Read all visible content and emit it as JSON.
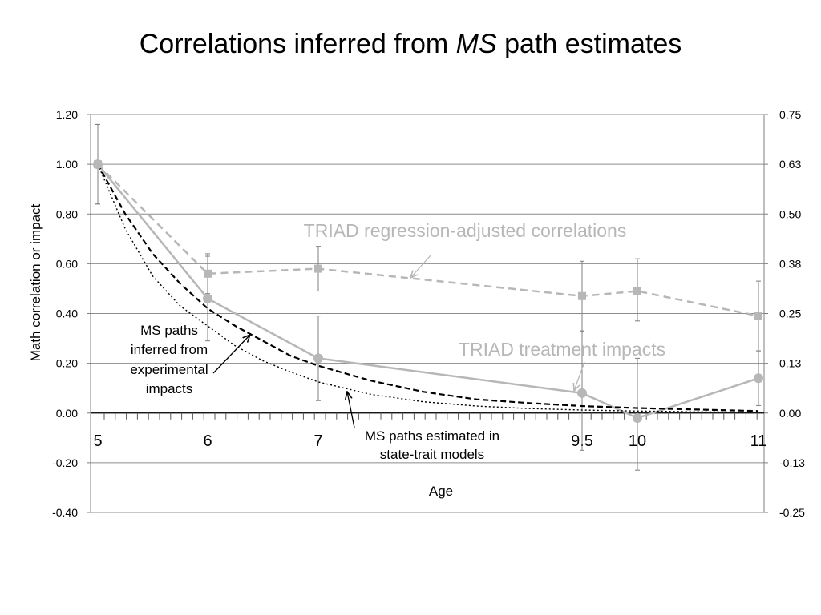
{
  "title": {
    "prefix": "Correlations inferred from ",
    "emph": "MS",
    "suffix": " path estimates"
  },
  "chart_data": {
    "type": "line",
    "xlabel": "Age",
    "ylabel": "Math correlation or impact",
    "ylim": [
      -0.4,
      1.2
    ],
    "y_ticks": [
      "1.20",
      "1.00",
      "0.80",
      "0.60",
      "0.40",
      "0.20",
      "0.00",
      "-0.20",
      "-0.40"
    ],
    "y2_ticks": [
      "0.75",
      "0.63",
      "0.50",
      "0.38",
      "0.25",
      "0.13",
      "0.00",
      "-0.13",
      "-0.25"
    ],
    "x_ticks": [
      "5",
      "6",
      "7",
      "9.5",
      "10",
      "11"
    ],
    "grid": true,
    "colors": {
      "grey": "#b7b7b7",
      "black": "#000000",
      "grid": "#8c8c8c"
    },
    "series": [
      {
        "name": "TRIAD regression-adjusted correlations",
        "x": [
          5,
          6,
          7,
          9.5,
          10,
          11
        ],
        "y": [
          1.0,
          0.56,
          0.58,
          0.47,
          0.49,
          0.39
        ],
        "err_low": [
          0.84,
          0.48,
          0.49,
          0.33,
          0.37,
          0.25
        ],
        "err_high": [
          1.16,
          0.64,
          0.67,
          0.61,
          0.62,
          0.53
        ]
      },
      {
        "name": "TRIAD treatment impacts",
        "x": [
          5,
          6,
          7,
          9.5,
          10,
          11
        ],
        "y": [
          1.0,
          0.46,
          0.22,
          0.08,
          -0.02,
          0.14
        ],
        "err_low": [
          0.84,
          0.29,
          0.05,
          -0.15,
          -0.23,
          0.03
        ],
        "err_high": [
          1.16,
          0.63,
          0.39,
          0.33,
          0.22,
          0.25
        ]
      },
      {
        "name": "MS paths inferred from experimental impacts",
        "x": [
          5,
          5.25,
          5.5,
          5.75,
          6,
          6.25,
          6.5,
          6.75,
          7,
          7.5,
          8,
          8.5,
          9,
          9.5,
          10,
          10.5,
          11
        ],
        "y": [
          1.0,
          0.8,
          0.64,
          0.52,
          0.42,
          0.35,
          0.29,
          0.23,
          0.19,
          0.13,
          0.085,
          0.055,
          0.04,
          0.028,
          0.02,
          0.014,
          0.008
        ]
      },
      {
        "name": "MS paths estimated in state-trait models",
        "x": [
          5,
          5.25,
          5.5,
          5.75,
          6,
          6.25,
          6.5,
          6.75,
          7,
          7.5,
          8,
          8.5,
          9,
          9.5,
          10,
          10.5,
          11
        ],
        "y": [
          1.0,
          0.74,
          0.55,
          0.43,
          0.35,
          0.27,
          0.21,
          0.165,
          0.125,
          0.075,
          0.045,
          0.028,
          0.018,
          0.012,
          0.008,
          0.005,
          0.003
        ]
      }
    ],
    "annotations": [
      "TRIAD regression-adjusted correlations",
      "TRIAD treatment impacts",
      "MS paths inferred from experimental impacts",
      "MS paths estimated in state-trait models"
    ]
  },
  "annotation_lines": {
    "ms_inferred": [
      "MS paths",
      "inferred from",
      "experimental",
      "impacts"
    ],
    "ms_estimated": [
      "MS paths estimated in",
      "state-trait models"
    ]
  }
}
